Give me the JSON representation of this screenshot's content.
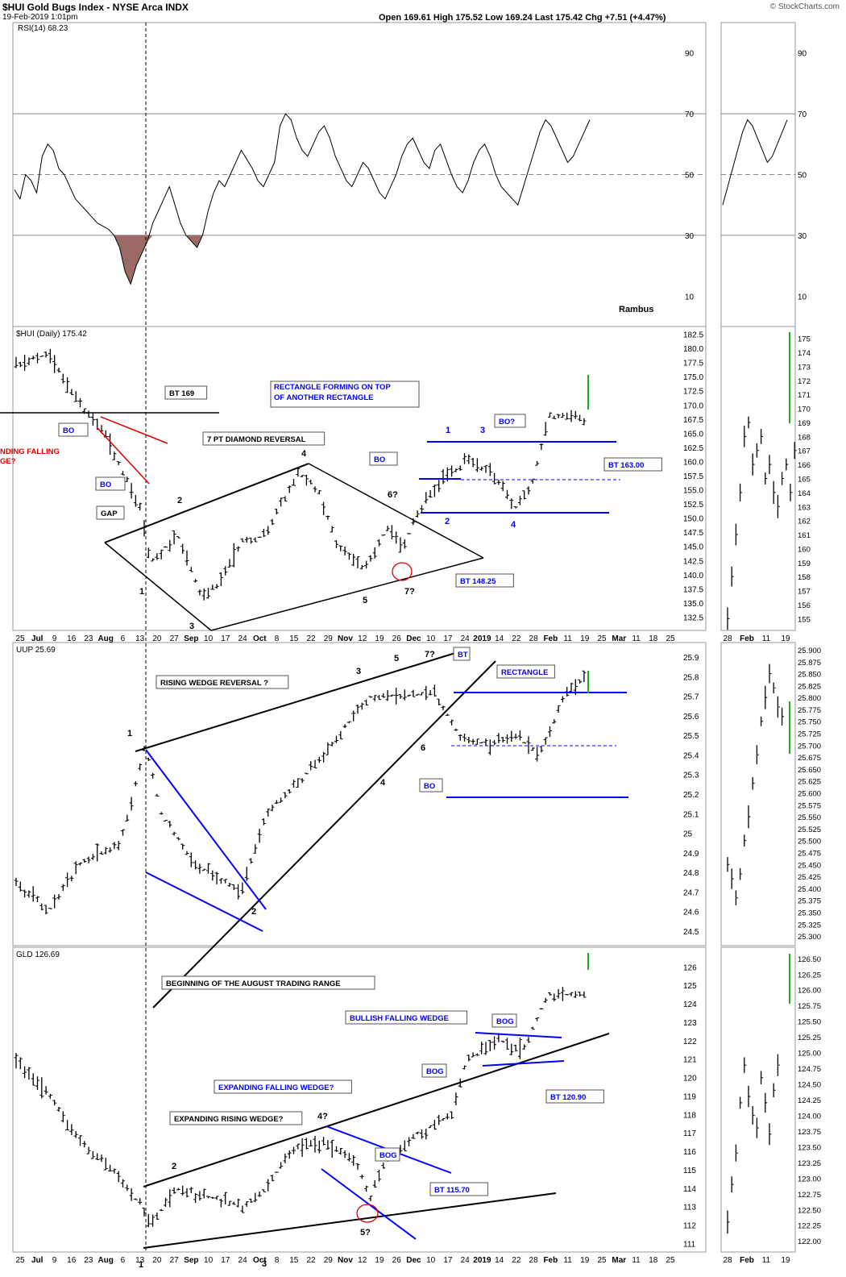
{
  "header": {
    "symbol_line": "$HUI Gold Bugs Index - NYSE Arca INDX",
    "date_line": "19-Feb-2019 1:01pm",
    "ohlc": "Open 169.61 High 175.52 Low 169.24 Last 175.42 Chg +7.51 (+4.47%)",
    "logo": "© StockCharts.com"
  },
  "author": "Rambus",
  "x_axis": {
    "main_ticks": [
      "25",
      "Jul",
      "9",
      "16",
      "23",
      "Aug",
      "6",
      "13",
      "20",
      "27",
      "Sep",
      "10",
      "17",
      "24",
      "Oct",
      "8",
      "15",
      "22",
      "29",
      "Nov",
      "12",
      "19",
      "26",
      "Dec",
      "10",
      "17",
      "24",
      "2019",
      "14",
      "22",
      "28",
      "Feb",
      "11",
      "19",
      "25",
      "Mar",
      "11",
      "18",
      "25"
    ],
    "side_ticks": [
      "28",
      "Feb",
      "11",
      "19"
    ]
  },
  "chart_data": [
    {
      "type": "line",
      "panel": "rsi",
      "title": "RSI(14) 68.23",
      "ylim": [
        0,
        100
      ],
      "y_ticks": [
        10,
        30,
        50,
        70,
        90
      ],
      "reference_lines": [
        30,
        50,
        70
      ],
      "values": [
        45,
        42,
        50,
        48,
        44,
        56,
        60,
        58,
        52,
        50,
        46,
        42,
        40,
        38,
        36,
        34,
        33,
        32,
        30,
        26,
        18,
        14,
        20,
        24,
        28,
        34,
        38,
        42,
        46,
        40,
        34,
        30,
        28,
        26,
        30,
        38,
        44,
        48,
        46,
        50,
        54,
        58,
        55,
        52,
        48,
        46,
        50,
        54,
        66,
        70,
        68,
        62,
        58,
        56,
        60,
        64,
        66,
        62,
        56,
        52,
        48,
        46,
        50,
        54,
        52,
        48,
        44,
        42,
        46,
        50,
        56,
        60,
        62,
        58,
        54,
        52,
        58,
        60,
        55,
        50,
        46,
        44,
        48,
        54,
        58,
        60,
        56,
        50,
        46,
        44,
        42,
        40,
        46,
        52,
        58,
        64,
        68,
        66,
        62,
        58,
        54,
        56,
        60,
        64,
        68
      ]
    },
    {
      "type": "bar",
      "panel": "hui",
      "title": "$HUI (Daily) 175.42",
      "ylim": [
        131.0,
        183.0
      ],
      "y_ticks": [
        132.5,
        135.0,
        137.5,
        140.0,
        142.5,
        145.0,
        147.5,
        150.0,
        152.5,
        155.0,
        157.5,
        160.0,
        162.5,
        165.0,
        167.5,
        170.0,
        172.5,
        175.0,
        177.5,
        180.0,
        182.5
      ],
      "side_y_ticks": [
        155,
        156,
        157,
        158,
        159,
        160,
        161,
        162,
        163,
        164,
        165,
        166,
        167,
        168,
        169,
        170,
        171,
        172,
        173,
        174,
        175
      ],
      "annotations": [
        "BT 169",
        "BO",
        "BO",
        "GAP",
        "7 PT DIAMOND REVERSAL",
        "RECTANGLE FORMING ON TOP",
        "OF ANOTHER RECTANGLE",
        "BO",
        "BO?",
        "BT 163.00",
        "BT 148.25",
        "1",
        "2",
        "3",
        "4",
        "5",
        "6?",
        "7?",
        "1",
        "2",
        "3",
        "4",
        "NDING FALLING",
        "GE?"
      ]
    },
    {
      "type": "bar",
      "panel": "uup",
      "title": "UUP 25.69",
      "ylim": [
        24.45,
        25.95
      ],
      "y_ticks": [
        24.5,
        24.6,
        24.7,
        24.8,
        24.9,
        25.0,
        25.1,
        25.2,
        25.3,
        25.4,
        25.5,
        25.6,
        25.7,
        25.8,
        25.9
      ],
      "side_y_ticks": [
        "25.300",
        "25.325",
        "25.350",
        "25.375",
        "25.400",
        "25.425",
        "25.450",
        "25.475",
        "25.500",
        "25.525",
        "25.550",
        "25.575",
        "25.600",
        "25.625",
        "25.650",
        "25.675",
        "25.700",
        "25.725",
        "25.750",
        "25.775",
        "25.800",
        "25.825",
        "25.850",
        "25.875",
        "25.900"
      ],
      "annotations": [
        "RISING WEDGE REVERSAL ?",
        "BT",
        "RECTANGLE",
        "BO",
        "1",
        "2",
        "3",
        "4",
        "5",
        "6",
        "7?"
      ]
    },
    {
      "type": "bar",
      "panel": "gld",
      "title": "GLD 126.69",
      "ylim": [
        110.8,
        126.8
      ],
      "y_ticks": [
        111,
        112,
        113,
        114,
        115,
        116,
        117,
        118,
        119,
        120,
        121,
        122,
        123,
        124,
        125,
        126
      ],
      "side_y_ticks": [
        "122.00",
        "122.25",
        "122.50",
        "122.75",
        "123.00",
        "123.25",
        "123.50",
        "123.75",
        "124.00",
        "124.25",
        "124.50",
        "124.75",
        "125.00",
        "125.25",
        "125.50",
        "125.75",
        "126.00",
        "126.25",
        "126.50"
      ],
      "annotations": [
        "BEGINNING OF THE AUGUST TRADING RANGE",
        "BULLISH FALLING WEDGE",
        "BOG",
        "BOG",
        "BT 120.90",
        "EXPANDING FALLING WEDGE?",
        "EXPANDING RISING WEDGE?",
        "BOG",
        "BT 115.70",
        "1",
        "2",
        "3",
        "4?",
        "5?"
      ]
    }
  ],
  "colors": {
    "black": "#000000",
    "blue": "#0000ff",
    "red": "#e00000",
    "green": "#22aa22",
    "rsi_fill": "#9a6b66",
    "grid": "#888888"
  }
}
